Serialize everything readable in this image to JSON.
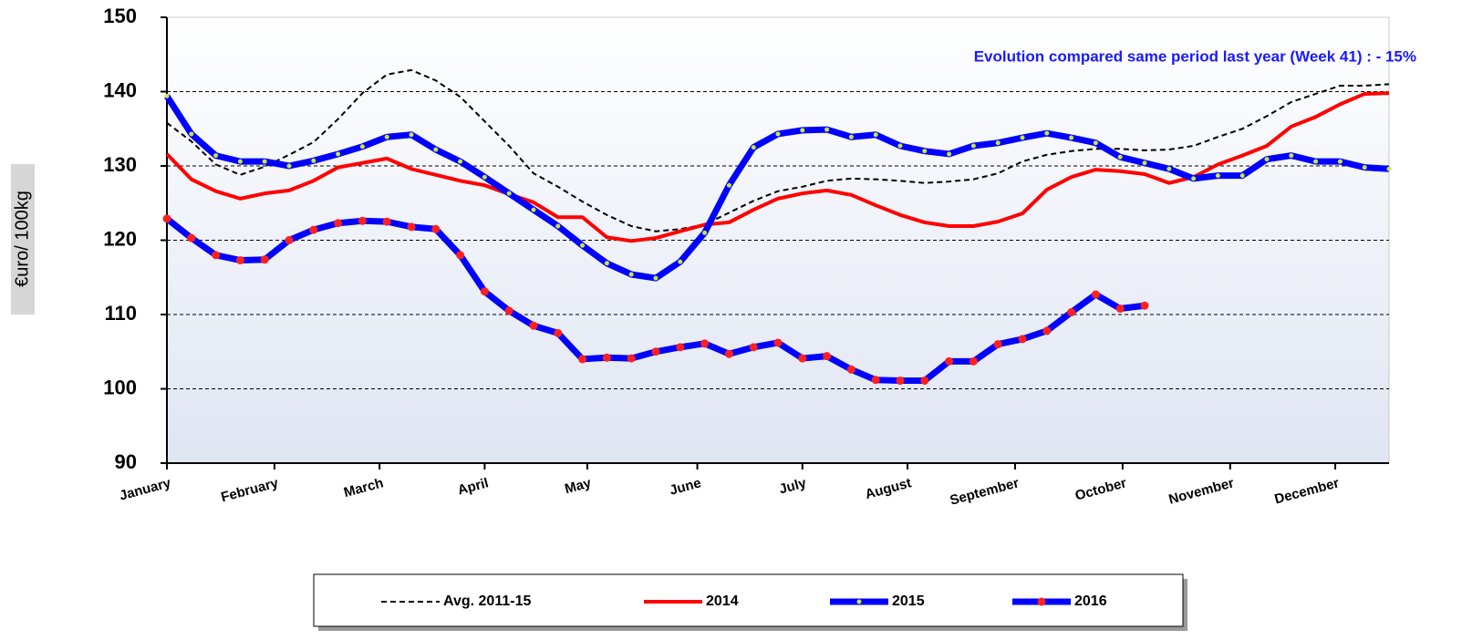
{
  "chart_data": {
    "type": "line",
    "y_label": "€uro/ 100kg",
    "annotation": "Evolution compared same period last year (Week 41) : - 15%",
    "x": [
      1,
      2,
      3,
      4,
      5,
      6,
      7,
      8,
      9,
      10,
      11,
      12,
      13,
      14,
      15,
      16,
      17,
      18,
      19,
      20,
      21,
      22,
      23,
      24,
      25,
      26,
      27,
      28,
      29,
      30,
      31,
      32,
      33,
      34,
      35,
      36,
      37,
      38,
      39,
      40,
      41,
      42,
      43,
      44,
      45,
      46,
      47,
      48,
      49,
      50,
      51
    ],
    "xlim": [
      1,
      51
    ],
    "xticks": [
      {
        "value": 1,
        "label": "January"
      },
      {
        "value": 5.4,
        "label": "February"
      },
      {
        "value": 9.7,
        "label": "March"
      },
      {
        "value": 14.0,
        "label": "April"
      },
      {
        "value": 18.2,
        "label": "May"
      },
      {
        "value": 22.7,
        "label": "June"
      },
      {
        "value": 27.0,
        "label": "July"
      },
      {
        "value": 31.3,
        "label": "August"
      },
      {
        "value": 35.7,
        "label": "September"
      },
      {
        "value": 40.1,
        "label": "October"
      },
      {
        "value": 44.5,
        "label": "November"
      },
      {
        "value": 48.8,
        "label": "December"
      }
    ],
    "ylim": [
      90,
      150
    ],
    "yticks": [
      90,
      100,
      110,
      120,
      130,
      140,
      150
    ],
    "grid": true,
    "legend": "bottom",
    "series": [
      {
        "name": "Avg. 2011-15",
        "color": "#000000",
        "style": "dashed",
        "values": [
          135.8,
          133.3,
          130.2,
          128.8,
          129.9,
          131.5,
          133.2,
          136.3,
          139.8,
          142.3,
          142.9,
          141.5,
          139.3,
          136,
          132.7,
          129,
          127.2,
          125.2,
          123.4,
          121.9,
          121.2,
          121.5,
          122.1,
          123.7,
          125.3,
          126.6,
          127.2,
          128,
          128.3,
          128.2,
          128,
          127.7,
          127.9,
          128.2,
          129,
          130.6,
          131.5,
          132,
          132.3,
          132.3,
          132.1,
          132.2,
          132.7,
          133.9,
          135,
          136.7,
          138.6,
          139.7,
          140.8,
          140.8,
          141
        ]
      },
      {
        "name": "2014",
        "color": "#ff0000",
        "style": "solid",
        "values": [
          131.6,
          128.2,
          126.6,
          125.6,
          126.3,
          126.7,
          128,
          129.8,
          130.4,
          131,
          129.6,
          128.8,
          128,
          127.4,
          126.2,
          125.1,
          123.1,
          123.1,
          120.4,
          119.9,
          120.3,
          121.2,
          122.1,
          122.4,
          124.1,
          125.6,
          126.3,
          126.7,
          126.1,
          124.7,
          123.4,
          122.4,
          121.9,
          121.9,
          122.5,
          123.6,
          126.8,
          128.5,
          129.5,
          129.3,
          128.9,
          127.7,
          128.5,
          130.2,
          131.4,
          132.7,
          135.3,
          136.6,
          138.3,
          139.7,
          139.8
        ]
      },
      {
        "name": "2015",
        "color": "#0000ff",
        "style": "thick",
        "marker_color": "#c8e63c",
        "values": [
          139.4,
          134.3,
          131.4,
          130.6,
          130.6,
          130,
          130.7,
          131.6,
          132.6,
          133.9,
          134.2,
          132.2,
          130.6,
          128.5,
          126.3,
          124.1,
          121.9,
          119.3,
          116.9,
          115.4,
          114.9,
          117.1,
          121,
          127.4,
          132.5,
          134.3,
          134.8,
          134.9,
          133.9,
          134.2,
          132.7,
          132,
          131.6,
          132.7,
          133.1,
          133.8,
          134.4,
          133.8,
          133.1,
          131.2,
          130.4,
          129.6,
          128.3,
          128.7,
          128.7,
          130.9,
          131.4,
          130.6,
          130.6,
          129.8,
          129.6
        ]
      },
      {
        "name": "2016",
        "color": "#0000ff",
        "style": "thick",
        "marker_color": "#ff2020",
        "values": [
          122.9,
          120.3,
          118,
          117.3,
          117.4,
          120,
          121.4,
          122.3,
          122.6,
          122.5,
          121.8,
          121.5,
          118,
          113.1,
          110.5,
          108.5,
          107.5,
          104,
          104.2,
          104.1,
          105,
          105.6,
          106.1,
          104.7,
          105.6,
          106.2,
          104.1,
          104.4,
          102.6,
          101.2,
          101.1,
          101.1,
          103.7,
          103.7,
          106,
          106.7,
          107.8,
          110.3,
          112.7,
          110.8,
          111.2,
          null,
          null,
          null,
          null,
          null,
          null,
          null,
          null,
          null,
          null
        ]
      }
    ]
  }
}
